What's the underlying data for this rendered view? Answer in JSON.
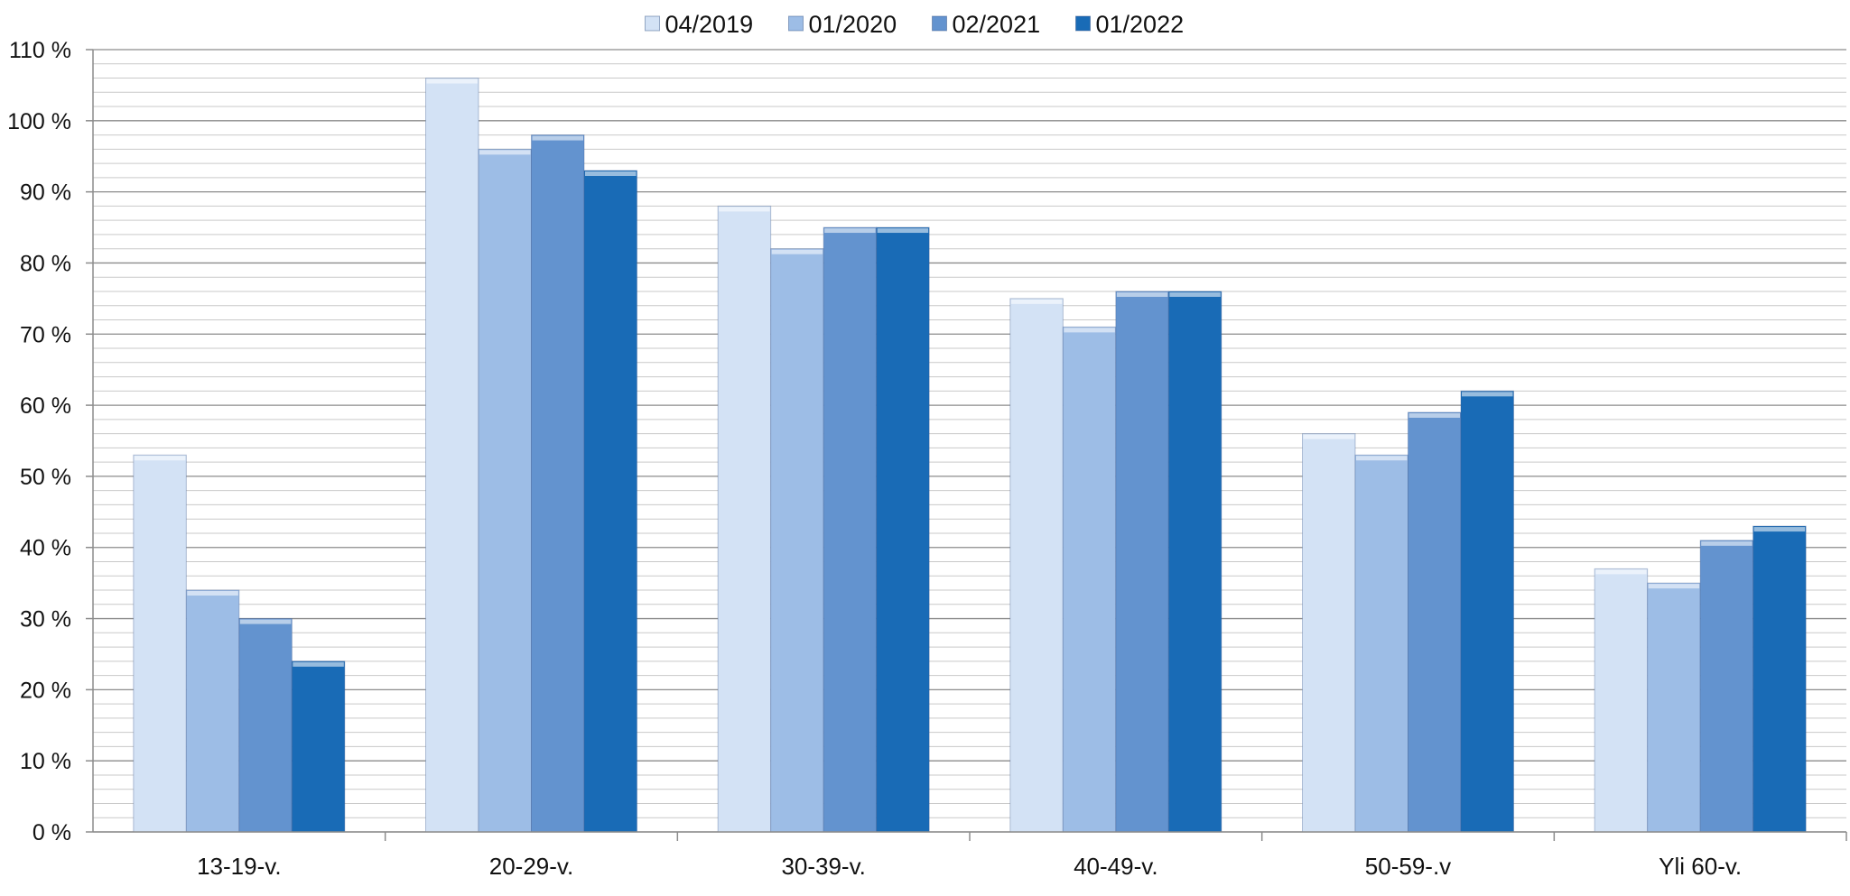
{
  "chart_data": {
    "type": "bar",
    "title": "",
    "xlabel": "",
    "ylabel": "",
    "categories": [
      "13-19-v.",
      "20-29-v.",
      "30-39-v.",
      "40-49-v.",
      "50-59-.v",
      "Yli 60-v."
    ],
    "series": [
      {
        "name": "04/2019",
        "color": "#d3e2f5",
        "values": [
          53,
          106,
          88,
          75,
          56,
          37
        ]
      },
      {
        "name": "01/2020",
        "color": "#9dbde6",
        "values": [
          34,
          96,
          82,
          71,
          53,
          35
        ]
      },
      {
        "name": "02/2021",
        "color": "#6393cf",
        "values": [
          30,
          98,
          85,
          76,
          59,
          41
        ]
      },
      {
        "name": "01/2022",
        "color": "#196bb6",
        "values": [
          24,
          93,
          85,
          76,
          62,
          43
        ]
      }
    ],
    "ylim": [
      0,
      110
    ],
    "yticks": [
      0,
      10,
      20,
      30,
      40,
      50,
      60,
      70,
      80,
      90,
      100,
      110
    ],
    "ytick_labels": [
      "0 %",
      "10 %",
      "20 %",
      "30 %",
      "40 %",
      "50 %",
      "60 %",
      "70 %",
      "80 %",
      "90 %",
      "100 %",
      "110 %"
    ],
    "grid": true,
    "minor_grid_step": 2,
    "legend_position": "top-center"
  }
}
